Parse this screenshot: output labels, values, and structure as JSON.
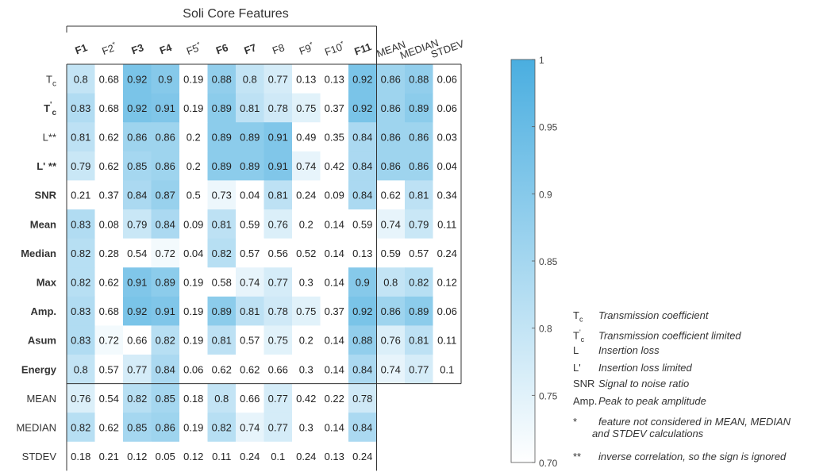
{
  "chart_data": {
    "type": "heatmap",
    "title": "Soli Core Features",
    "columns": [
      {
        "label": "F1",
        "bold": true,
        "star": ""
      },
      {
        "label": "F2",
        "bold": false,
        "star": "*"
      },
      {
        "label": "F3",
        "bold": true,
        "star": ""
      },
      {
        "label": "F4",
        "bold": true,
        "star": ""
      },
      {
        "label": "F5",
        "bold": false,
        "star": "*"
      },
      {
        "label": "F6",
        "bold": true,
        "star": ""
      },
      {
        "label": "F7",
        "bold": true,
        "star": ""
      },
      {
        "label": "F8",
        "bold": false,
        "star": ""
      },
      {
        "label": "F9",
        "bold": false,
        "star": "*"
      },
      {
        "label": "F10",
        "bold": false,
        "star": "*"
      },
      {
        "label": "F11",
        "bold": true,
        "star": ""
      },
      {
        "label": "MEAN",
        "bold": false,
        "star": ""
      },
      {
        "label": "MEDIAN",
        "bold": false,
        "star": ""
      },
      {
        "label": "STDEV",
        "bold": false,
        "star": ""
      }
    ],
    "rows": [
      {
        "label": "Tc",
        "base": "T",
        "sub": "c",
        "sup": "",
        "suffix": "",
        "bold": false,
        "values": [
          0.8,
          0.68,
          0.92,
          0.9,
          0.19,
          0.88,
          0.8,
          0.77,
          0.13,
          0.13,
          0.92,
          0.86,
          0.88,
          0.06
        ]
      },
      {
        "label": "T'c",
        "base": "T",
        "sub": "c",
        "sup": "'",
        "suffix": "",
        "bold": true,
        "values": [
          0.83,
          0.68,
          0.92,
          0.91,
          0.19,
          0.89,
          0.81,
          0.78,
          0.75,
          0.37,
          0.92,
          0.86,
          0.89,
          0.06
        ]
      },
      {
        "label": "L**",
        "base": "L**",
        "sub": "",
        "sup": "",
        "suffix": "",
        "bold": false,
        "values": [
          0.81,
          0.62,
          0.86,
          0.86,
          0.2,
          0.89,
          0.89,
          0.91,
          0.49,
          0.35,
          0.84,
          0.86,
          0.86,
          0.03
        ]
      },
      {
        "label": "L' **",
        "base": "L' **",
        "sub": "",
        "sup": "",
        "suffix": "",
        "bold": true,
        "values": [
          0.79,
          0.62,
          0.85,
          0.86,
          0.2,
          0.89,
          0.89,
          0.91,
          0.74,
          0.42,
          0.84,
          0.86,
          0.86,
          0.04
        ]
      },
      {
        "label": "SNR",
        "base": "SNR",
        "sub": "",
        "sup": "",
        "suffix": "",
        "bold": true,
        "values": [
          0.21,
          0.37,
          0.84,
          0.87,
          0.5,
          0.73,
          0.04,
          0.81,
          0.24,
          0.09,
          0.84,
          0.62,
          0.81,
          0.34
        ]
      },
      {
        "label": "Mean",
        "base": "Mean",
        "sub": "",
        "sup": "",
        "suffix": "",
        "bold": true,
        "values": [
          0.83,
          0.08,
          0.79,
          0.84,
          0.09,
          0.81,
          0.59,
          0.76,
          0.2,
          0.14,
          0.59,
          0.74,
          0.79,
          0.11
        ]
      },
      {
        "label": "Median",
        "base": "Median",
        "sub": "",
        "sup": "",
        "suffix": "",
        "bold": true,
        "values": [
          0.82,
          0.28,
          0.54,
          0.72,
          0.04,
          0.82,
          0.57,
          0.56,
          0.52,
          0.14,
          0.13,
          0.59,
          0.57,
          0.24
        ]
      },
      {
        "label": "Max",
        "base": "Max",
        "sub": "",
        "sup": "",
        "suffix": "",
        "bold": true,
        "values": [
          0.82,
          0.62,
          0.91,
          0.89,
          0.19,
          0.58,
          0.74,
          0.77,
          0.3,
          0.14,
          0.9,
          0.8,
          0.82,
          0.12
        ]
      },
      {
        "label": "Amp.",
        "base": "Amp.",
        "sub": "",
        "sup": "",
        "suffix": "",
        "bold": true,
        "values": [
          0.83,
          0.68,
          0.92,
          0.91,
          0.19,
          0.89,
          0.81,
          0.78,
          0.75,
          0.37,
          0.92,
          0.86,
          0.89,
          0.06
        ]
      },
      {
        "label": "Asum",
        "base": "Asum",
        "sub": "",
        "sup": "",
        "suffix": "",
        "bold": true,
        "values": [
          0.83,
          0.72,
          0.66,
          0.82,
          0.19,
          0.81,
          0.57,
          0.75,
          0.2,
          0.14,
          0.88,
          0.76,
          0.81,
          0.11
        ]
      },
      {
        "label": "Energy",
        "base": "Energy",
        "sub": "",
        "sup": "",
        "suffix": "",
        "bold": true,
        "values": [
          0.8,
          0.57,
          0.77,
          0.84,
          0.06,
          0.62,
          0.62,
          0.66,
          0.3,
          0.14,
          0.84,
          0.74,
          0.77,
          0.1
        ]
      },
      {
        "label": "MEAN",
        "base": "MEAN",
        "sub": "",
        "sup": "",
        "suffix": "",
        "bold": false,
        "values": [
          0.76,
          0.54,
          0.82,
          0.85,
          0.18,
          0.8,
          0.66,
          0.77,
          0.42,
          0.22,
          0.78
        ]
      },
      {
        "label": "MEDIAN",
        "base": "MEDIAN",
        "sub": "",
        "sup": "",
        "suffix": "",
        "bold": false,
        "values": [
          0.82,
          0.62,
          0.85,
          0.86,
          0.19,
          0.82,
          0.74,
          0.77,
          0.3,
          0.14,
          0.84
        ]
      },
      {
        "label": "STDEV",
        "base": "STDEV",
        "sub": "",
        "sup": "",
        "suffix": "",
        "bold": false,
        "values": [
          0.18,
          0.21,
          0.12,
          0.05,
          0.12,
          0.11,
          0.24,
          0.1,
          0.24,
          0.13,
          0.24
        ]
      }
    ],
    "colorbar": {
      "min": 0.7,
      "max": 1,
      "ticks": [
        "1",
        "0.95",
        "0.9",
        "0.85",
        "0.8",
        "0.75",
        "0.70"
      ],
      "tick_values": [
        1,
        0.95,
        0.9,
        0.85,
        0.8,
        0.75,
        0.7
      ],
      "color_low": "#ffffff",
      "color_high": "#4aaee0"
    },
    "legend": [
      {
        "base": "T",
        "sub": "c",
        "sup": "",
        "desc": "Transmission coefficient"
      },
      {
        "base": "T",
        "sub": "c",
        "sup": "'",
        "desc": "Transmission coefficient limited"
      },
      {
        "base": "L",
        "sub": "",
        "sup": "",
        "desc": "Insertion loss"
      },
      {
        "base": "L'",
        "sub": "",
        "sup": "",
        "desc": "Insertion loss limited"
      },
      {
        "base": "SNR",
        "sub": "",
        "sup": "",
        "desc": "Signal to noise ratio"
      },
      {
        "base": "Amp.",
        "sub": "",
        "sup": "",
        "desc": "Peak to peak amplitude"
      }
    ],
    "notes": [
      {
        "mark": "*",
        "text": "feature not considered in MEAN, MEDIAN",
        "text2": "and STDEV calculations"
      },
      {
        "mark": "**",
        "text": "inverse correlation, so the sign is ignored",
        "text2": ""
      }
    ]
  }
}
